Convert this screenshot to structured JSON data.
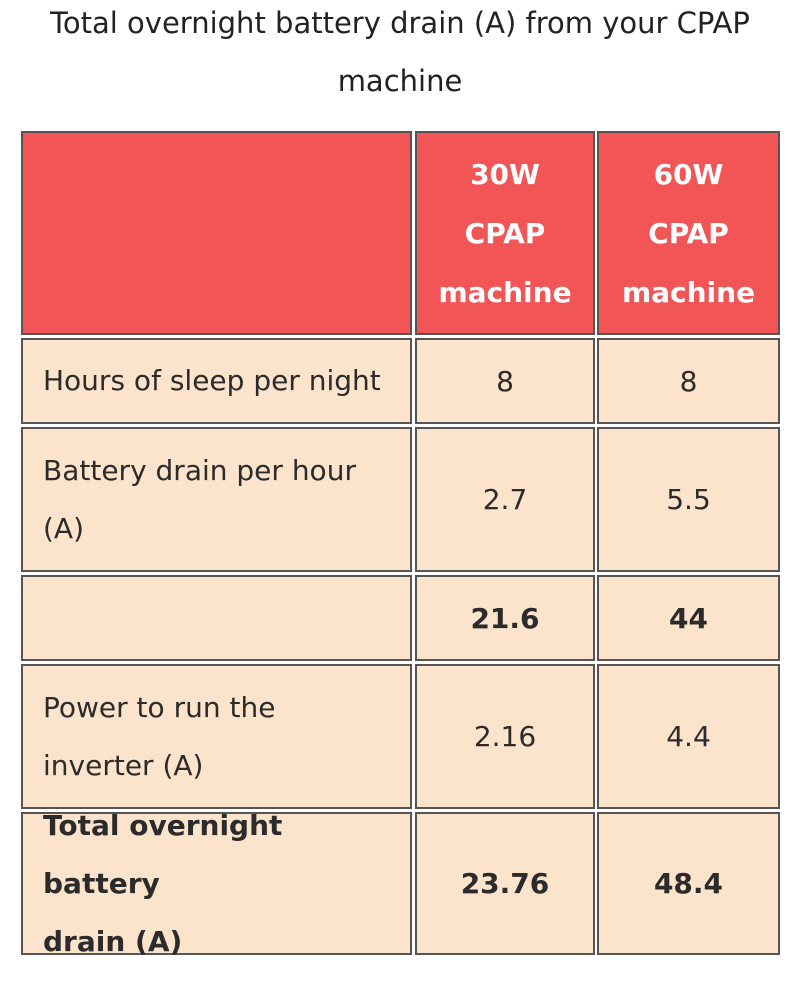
{
  "title": {
    "line1": "Total overnight battery drain (A) from your CPAP",
    "line2": "machine"
  },
  "table": {
    "columns": [
      "",
      "30W CPAP machine",
      "60W CPAP machine"
    ],
    "header": {
      "col1": {
        "line1": "30W",
        "line2": "CPAP",
        "line3": "machine"
      },
      "col2": {
        "line1": "60W",
        "line2": "CPAP",
        "line3": "machine"
      }
    },
    "rows": [
      {
        "label": "Hours of sleep per night",
        "v30": "8",
        "v60": "8"
      },
      {
        "label_line1": "Battery drain per hour",
        "label_line2": "(A)",
        "v30": "2.7",
        "v60": "5.5"
      },
      {
        "label": "",
        "v30": "21.6",
        "v60": "44"
      },
      {
        "label_line1": "Power to run the",
        "label_line2": "inverter (A)",
        "v30": "2.16",
        "v60": "4.4"
      },
      {
        "label_line1": "Total overnight battery",
        "label_line2": "drain (A)",
        "v30": "23.76",
        "v60": "48.4"
      }
    ]
  },
  "colors": {
    "header_bg": "#f25555",
    "body_bg": "#fce3cb",
    "border": "#555555"
  }
}
